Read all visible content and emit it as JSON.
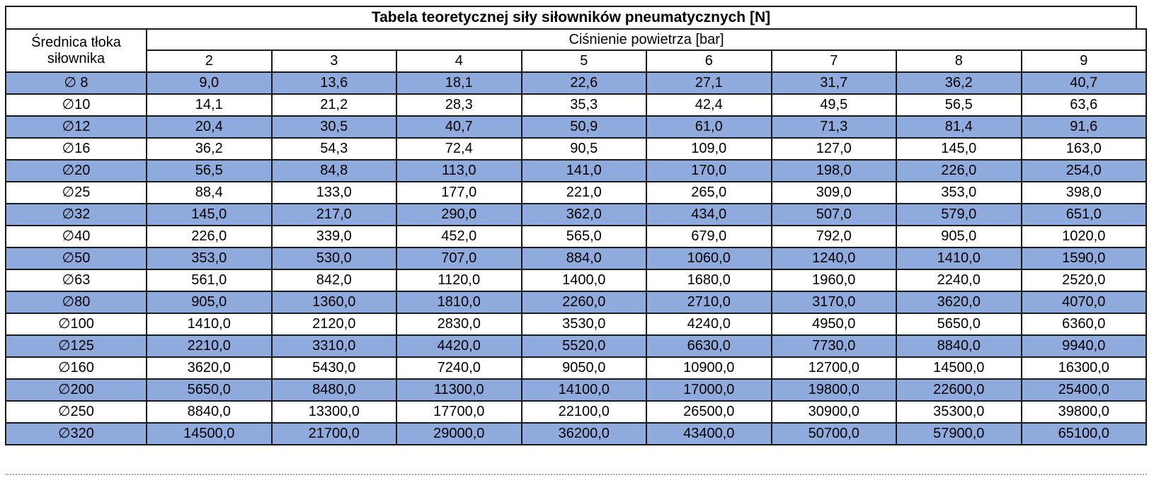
{
  "chart_data": {
    "type": "table",
    "title": "Tabela teoretycznej siły siłowników pneumatycznych [N]",
    "row_header": "Średnica tłoka siłownika",
    "column_group_header": "Ciśnienie powietrza [bar]",
    "columns": [
      "2",
      "3",
      "4",
      "5",
      "6",
      "7",
      "8",
      "9"
    ],
    "rows": [
      {
        "label": "∅ 8",
        "values": [
          "9,0",
          "13,6",
          "18,1",
          "22,6",
          "27,1",
          "31,7",
          "36,2",
          "40,7"
        ]
      },
      {
        "label": "∅10",
        "values": [
          "14,1",
          "21,2",
          "28,3",
          "35,3",
          "42,4",
          "49,5",
          "56,5",
          "63,6"
        ]
      },
      {
        "label": "∅12",
        "values": [
          "20,4",
          "30,5",
          "40,7",
          "50,9",
          "61,0",
          "71,3",
          "81,4",
          "91,6"
        ]
      },
      {
        "label": "∅16",
        "values": [
          "36,2",
          "54,3",
          "72,4",
          "90,5",
          "109,0",
          "127,0",
          "145,0",
          "163,0"
        ]
      },
      {
        "label": "∅20",
        "values": [
          "56,5",
          "84,8",
          "113,0",
          "141,0",
          "170,0",
          "198,0",
          "226,0",
          "254,0"
        ]
      },
      {
        "label": "∅25",
        "values": [
          "88,4",
          "133,0",
          "177,0",
          "221,0",
          "265,0",
          "309,0",
          "353,0",
          "398,0"
        ]
      },
      {
        "label": "∅32",
        "values": [
          "145,0",
          "217,0",
          "290,0",
          "362,0",
          "434,0",
          "507,0",
          "579,0",
          "651,0"
        ]
      },
      {
        "label": "∅40",
        "values": [
          "226,0",
          "339,0",
          "452,0",
          "565,0",
          "679,0",
          "792,0",
          "905,0",
          "1020,0"
        ]
      },
      {
        "label": "∅50",
        "values": [
          "353,0",
          "530,0",
          "707,0",
          "884,0",
          "1060,0",
          "1240,0",
          "1410,0",
          "1590,0"
        ]
      },
      {
        "label": "∅63",
        "values": [
          "561,0",
          "842,0",
          "1120,0",
          "1400,0",
          "1680,0",
          "1960,0",
          "2240,0",
          "2520,0"
        ]
      },
      {
        "label": "∅80",
        "values": [
          "905,0",
          "1360,0",
          "1810,0",
          "2260,0",
          "2710,0",
          "3170,0",
          "3620,0",
          "4070,0"
        ]
      },
      {
        "label": "∅100",
        "values": [
          "1410,0",
          "2120,0",
          "2830,0",
          "3530,0",
          "4240,0",
          "4950,0",
          "5650,0",
          "6360,0"
        ]
      },
      {
        "label": "∅125",
        "values": [
          "2210,0",
          "3310,0",
          "4420,0",
          "5520,0",
          "6630,0",
          "7730,0",
          "8840,0",
          "9940,0"
        ]
      },
      {
        "label": "∅160",
        "values": [
          "3620,0",
          "5430,0",
          "7240,0",
          "9050,0",
          "10900,0",
          "12700,0",
          "14500,0",
          "16300,0"
        ]
      },
      {
        "label": "∅200",
        "values": [
          "5650,0",
          "8480,0",
          "11300,0",
          "14100,0",
          "17000,0",
          "19800,0",
          "22600,0",
          "25400,0"
        ]
      },
      {
        "label": "∅250",
        "values": [
          "8840,0",
          "13300,0",
          "17700,0",
          "22100,0",
          "26500,0",
          "30900,0",
          "35300,0",
          "39800,0"
        ]
      },
      {
        "label": "∅320",
        "values": [
          "14500,0",
          "21700,0",
          "29000,0",
          "36200,0",
          "43400,0",
          "50700,0",
          "57900,0",
          "65100,0"
        ]
      }
    ],
    "layout_hints": {
      "highlight_pattern": "rows 1,3,5,... (first data row highlighted, alternating)",
      "highlight_row_color": "#8faadc",
      "plain_row_color": "#ffffff",
      "border_color": "#1a1a1a",
      "text_color": "#000000"
    }
  }
}
